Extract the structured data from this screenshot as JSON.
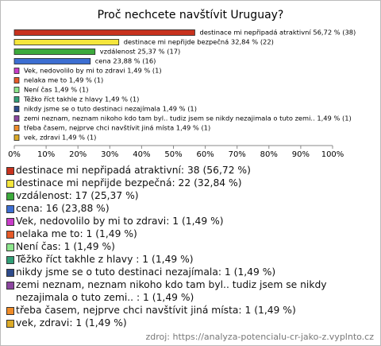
{
  "chart_data": {
    "type": "bar",
    "orientation": "horizontal",
    "title": "Proč nechcete navštívit Uruguay?",
    "categories": [
      "destinace mi nepřipadá atraktivní: 38 (56,72 %)",
      "destinace mi nepřijde bezpečná: 22 (32,84 %)",
      "vzdálenost: 17 (25,37 %)",
      "cena: 16 (23,88 %)",
      "Vek, nedovolilo by mi to zdravi: 1 (1,49 %)",
      "nelaka me to: 1 (1,49 %)",
      "Není čas: 1 (1,49 %)",
      "Těžko říct takhle z hlavy : 1 (1,49 %)",
      "nikdy jsme se o tuto destinaci nezajímala: 1 (1,49 %)",
      "zemi neznam, neznam nikoho kdo tam byl.. tudiz jsem se nikdy nezajimala o tuto zemi.. : 1 (1,49 %)",
      "třeba časem, nejprve chci navštívit jiná místa: 1 (1,49 %)",
      "vek, zdravi: 1 (1,49 %)"
    ],
    "values": [
      56.72,
      32.84,
      25.37,
      23.88,
      1.49,
      1.49,
      1.49,
      1.49,
      1.49,
      1.49,
      1.49,
      1.49
    ],
    "value_labels": [
      "destinace mi nepřipadá atraktivní 56,72 % (38)",
      "destinace mi nepřijde bezpečná 32,84 % (22)",
      "vzdálenost 25,37 % (17)",
      "cena 23,88 % (16)",
      "Vek, nedovolilo by mi to zdravi 1,49 % (1)",
      "nelaka me to 1,49 % (1)",
      "Není čas 1,49 % (1)",
      "Těžko říct takhle z hlavy  1,49 % (1)",
      "nikdy jsme se o tuto destinaci nezajímala 1,49 % (1)",
      "zemi neznam, neznam nikoho kdo tam byl.. tudiz jsem se nikdy nezajimala o tuto zemi..  1,49 % (1)",
      "třeba časem, nejprve chci navštívit jiná místa 1,49 % (1)",
      "vek, zdravi 1,49 % (1)"
    ],
    "colors": [
      "#c8321e",
      "#f5e63c",
      "#3caa3c",
      "#3c6ed2",
      "#c83cc8",
      "#e65a28",
      "#8ce68c",
      "#32a078",
      "#2d4b8c",
      "#8c46a0",
      "#f08c28",
      "#dcaa28"
    ],
    "xlim": [
      0,
      100
    ],
    "xticks": [
      {
        "value": 0,
        "label": "0%"
      },
      {
        "value": 10,
        "label": "10%"
      },
      {
        "value": 20,
        "label": "20%"
      },
      {
        "value": 30,
        "label": "30%"
      },
      {
        "value": 40,
        "label": "40%"
      },
      {
        "value": 50,
        "label": "50%"
      },
      {
        "value": 60,
        "label": "60%"
      },
      {
        "value": 70,
        "label": "70%"
      },
      {
        "value": 80,
        "label": "80%"
      },
      {
        "value": 90,
        "label": "90%"
      },
      {
        "value": 100,
        "label": "100%"
      }
    ],
    "source": "zdroj: https://analyza-potencialu-cr-jako-z.vyplnto.cz"
  }
}
